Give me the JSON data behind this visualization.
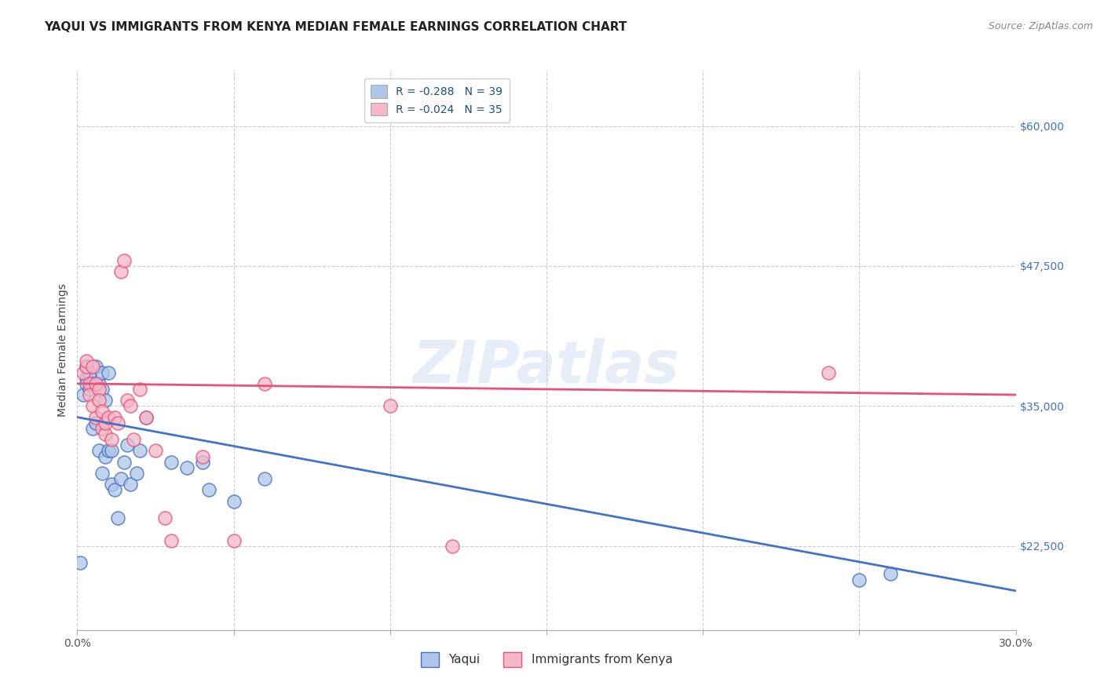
{
  "title": "YAQUI VS IMMIGRANTS FROM KENYA MEDIAN FEMALE EARNINGS CORRELATION CHART",
  "source": "Source: ZipAtlas.com",
  "ylabel_label": "Median Female Earnings",
  "x_min": 0.0,
  "x_max": 0.3,
  "y_min": 15000,
  "y_max": 65000,
  "x_ticks": [
    0.0,
    0.05,
    0.1,
    0.15,
    0.2,
    0.25,
    0.3
  ],
  "y_ticks": [
    22500,
    35000,
    47500,
    60000
  ],
  "y_tick_labels": [
    "$22,500",
    "$35,000",
    "$47,500",
    "$60,000"
  ],
  "watermark": "ZIPatlas",
  "legend_entries": [
    {
      "label": "R = -0.288   N = 39",
      "color": "#aec6e8"
    },
    {
      "label": "R = -0.024   N = 35",
      "color": "#f4b8c8"
    }
  ],
  "legend_bottom": [
    "Yaqui",
    "Immigrants from Kenya"
  ],
  "blue_color": "#4472c4",
  "pink_color": "#e8517a",
  "blue_scatter_color": "#aec6e8",
  "pink_scatter_color": "#f4b8c8",
  "blue_scatter_edge": "#4472c4",
  "pink_scatter_edge": "#e8517a",
  "yaqui_x": [
    0.001,
    0.002,
    0.003,
    0.003,
    0.003,
    0.004,
    0.004,
    0.005,
    0.005,
    0.006,
    0.006,
    0.007,
    0.007,
    0.008,
    0.008,
    0.008,
    0.009,
    0.009,
    0.01,
    0.01,
    0.011,
    0.011,
    0.012,
    0.013,
    0.014,
    0.015,
    0.016,
    0.017,
    0.019,
    0.02,
    0.022,
    0.03,
    0.035,
    0.04,
    0.042,
    0.05,
    0.06,
    0.25,
    0.26
  ],
  "yaqui_y": [
    21000,
    36000,
    37500,
    37000,
    38500,
    36500,
    38000,
    33000,
    37000,
    38500,
    33500,
    37000,
    31000,
    38000,
    36500,
    29000,
    35500,
    30500,
    31000,
    38000,
    31000,
    28000,
    27500,
    25000,
    28500,
    30000,
    31500,
    28000,
    29000,
    31000,
    34000,
    30000,
    29500,
    30000,
    27500,
    26500,
    28500,
    19500,
    20000
  ],
  "kenya_x": [
    0.002,
    0.003,
    0.003,
    0.004,
    0.004,
    0.005,
    0.005,
    0.006,
    0.006,
    0.007,
    0.007,
    0.008,
    0.008,
    0.009,
    0.009,
    0.01,
    0.011,
    0.012,
    0.013,
    0.014,
    0.015,
    0.016,
    0.017,
    0.018,
    0.02,
    0.022,
    0.025,
    0.028,
    0.03,
    0.04,
    0.05,
    0.06,
    0.1,
    0.12,
    0.24
  ],
  "kenya_y": [
    38000,
    38500,
    39000,
    37000,
    36000,
    38500,
    35000,
    34000,
    37000,
    36500,
    35500,
    34500,
    33000,
    32500,
    33500,
    34000,
    32000,
    34000,
    33500,
    47000,
    48000,
    35500,
    35000,
    32000,
    36500,
    34000,
    31000,
    25000,
    23000,
    30500,
    23000,
    37000,
    35000,
    22500,
    38000
  ],
  "blue_trend_x": [
    0.0,
    0.3
  ],
  "blue_trend_y": [
    34000,
    18500
  ],
  "pink_trend_x": [
    0.0,
    0.3
  ],
  "pink_trend_y": [
    37000,
    36000
  ],
  "background_color": "#ffffff",
  "grid_color": "#cccccc",
  "title_fontsize": 11,
  "axis_label_fontsize": 10,
  "tick_fontsize": 10,
  "legend_fontsize": 10,
  "source_fontsize": 9
}
